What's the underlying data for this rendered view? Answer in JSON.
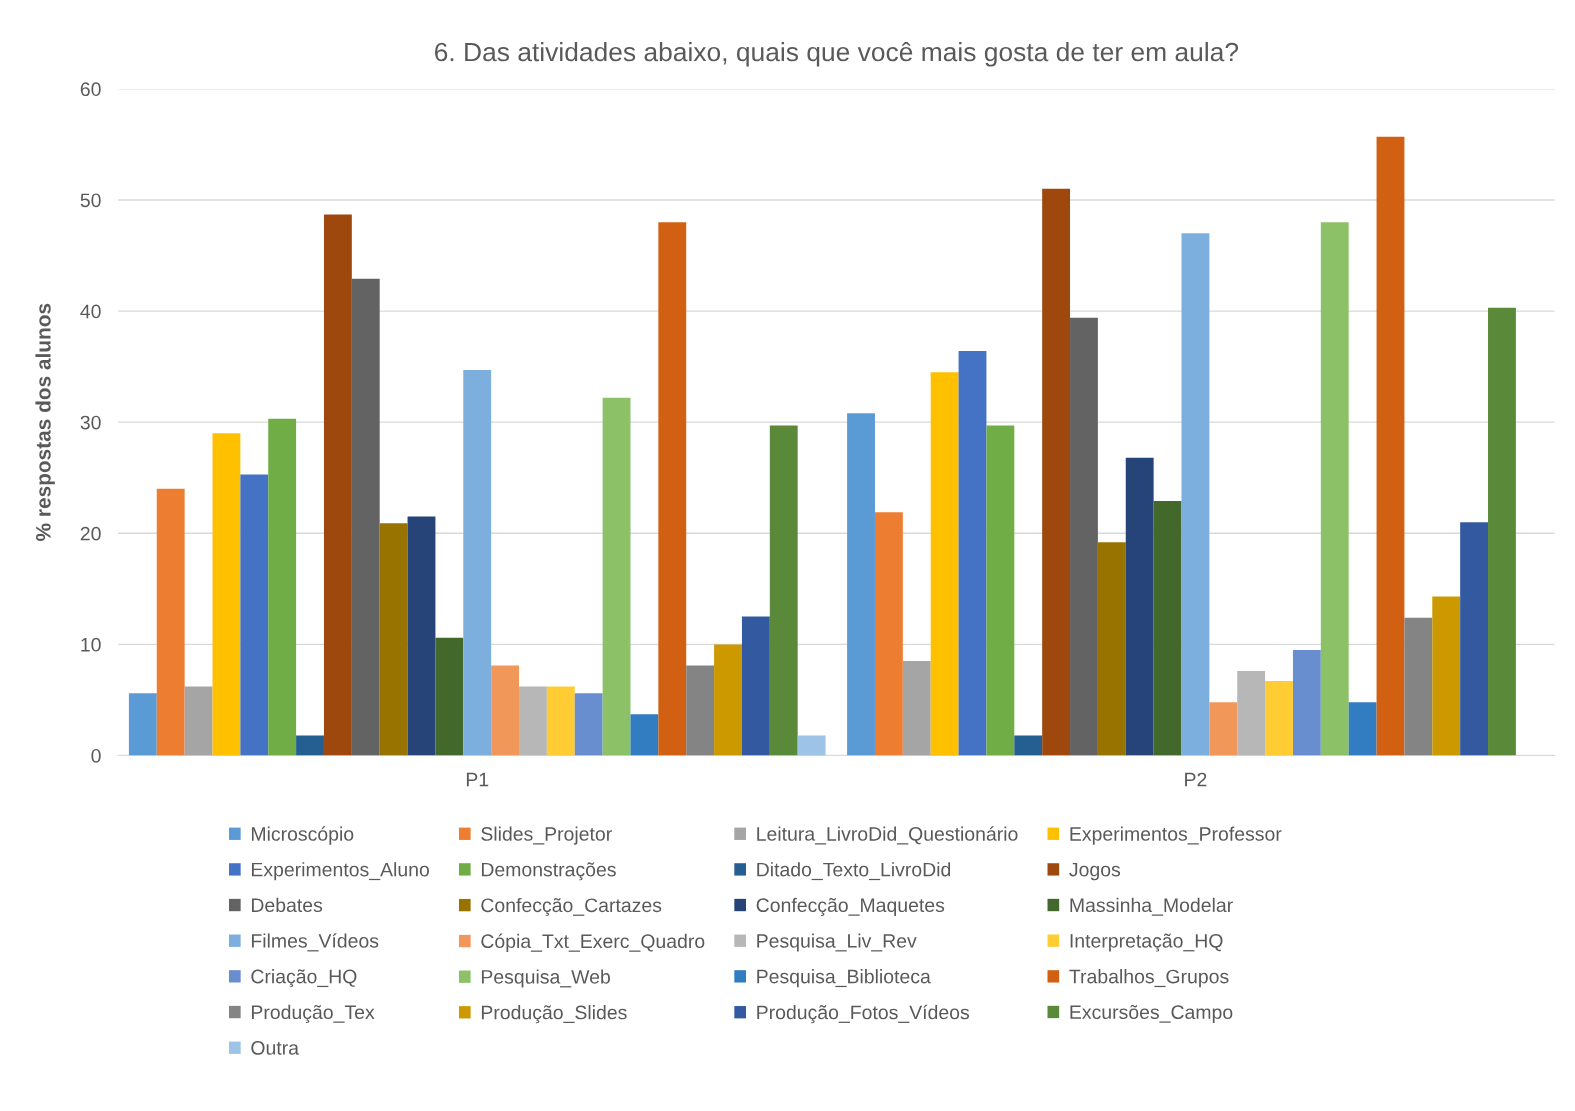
{
  "chart_data": {
    "type": "bar",
    "title": "6. Das atividades abaixo, quais que você mais gosta de ter em aula?",
    "ylabel": "% respostas dos alunos",
    "categories": [
      "P1",
      "P2"
    ],
    "ylim": [
      0,
      60
    ],
    "yticks": [
      0,
      10,
      20,
      30,
      40,
      50,
      60
    ],
    "grid": "y",
    "legend": "bottom",
    "series": [
      {
        "name": "Microscópio",
        "color": "#5b9bd5",
        "values": [
          5.6,
          30.8
        ]
      },
      {
        "name": "Slides_Projetor",
        "color": "#ed7d31",
        "values": [
          24.0,
          21.9
        ]
      },
      {
        "name": "Leitura_LivroDid_Questionário",
        "color": "#a5a5a5",
        "values": [
          6.2,
          8.5
        ]
      },
      {
        "name": "Experimentos_Professor",
        "color": "#ffc000",
        "values": [
          29.0,
          34.5
        ]
      },
      {
        "name": "Experimentos_Aluno",
        "color": "#4472c4",
        "values": [
          25.3,
          36.4
        ]
      },
      {
        "name": "Demonstrações",
        "color": "#70ad47",
        "values": [
          30.3,
          29.7
        ]
      },
      {
        "name": "Ditado_Texto_LivroDid",
        "color": "#255e91",
        "values": [
          1.8,
          1.8
        ]
      },
      {
        "name": "Jogos",
        "color": "#9e480e",
        "values": [
          48.7,
          51.0
        ]
      },
      {
        "name": "Debates",
        "color": "#636363",
        "values": [
          42.9,
          39.4
        ]
      },
      {
        "name": "Confecção_Cartazes",
        "color": "#997300",
        "values": [
          20.9,
          19.2
        ]
      },
      {
        "name": "Confecção_Maquetes",
        "color": "#264478",
        "values": [
          21.5,
          26.8
        ]
      },
      {
        "name": "Massinha_Modelar",
        "color": "#43682b",
        "values": [
          10.6,
          22.9
        ]
      },
      {
        "name": "Filmes_Vídeos",
        "color": "#7cafdd",
        "values": [
          34.7,
          47.0
        ]
      },
      {
        "name": "Cópia_Txt_Exerc_Quadro",
        "color": "#f1975a",
        "values": [
          8.1,
          4.8
        ]
      },
      {
        "name": "Pesquisa_Liv_Rev",
        "color": "#b7b7b7",
        "values": [
          6.2,
          7.6
        ]
      },
      {
        "name": "Interpretação_HQ",
        "color": "#ffcd33",
        "values": [
          6.2,
          6.7
        ]
      },
      {
        "name": "Criação_HQ",
        "color": "#698ed0",
        "values": [
          5.6,
          9.5
        ]
      },
      {
        "name": "Pesquisa_Web",
        "color": "#8cc168",
        "values": [
          32.2,
          48.0
        ]
      },
      {
        "name": "Pesquisa_Biblioteca",
        "color": "#327dc2",
        "values": [
          3.7,
          4.8
        ]
      },
      {
        "name": "Trabalhos_Grupos",
        "color": "#d26012",
        "values": [
          48.0,
          55.7
        ]
      },
      {
        "name": "Produção_Tex",
        "color": "#848484",
        "values": [
          8.1,
          12.4
        ]
      },
      {
        "name": "Produção_Slides",
        "color": "#cc9a00",
        "values": [
          10.0,
          14.3
        ]
      },
      {
        "name": "Produção_Fotos_Vídeos",
        "color": "#335aa1",
        "values": [
          12.5,
          21.0
        ]
      },
      {
        "name": "Excursões_Campo",
        "color": "#5a8a39",
        "values": [
          29.7,
          40.3
        ]
      },
      {
        "name": "Outra",
        "color": "#9dc3e6",
        "values": [
          1.8,
          null
        ]
      }
    ]
  }
}
